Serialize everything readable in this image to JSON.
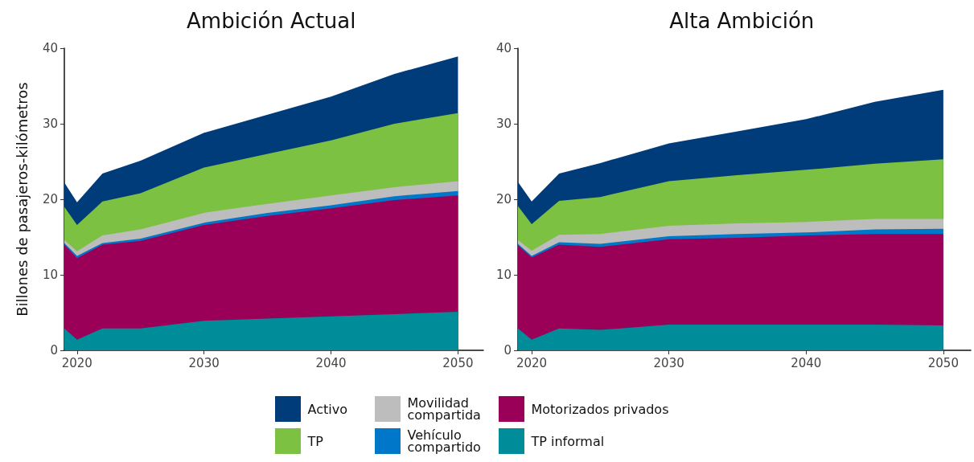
{
  "chart_data": [
    {
      "type": "area",
      "title": "Ambición Actual",
      "ylabel": "Billones de pasajeros-kilómetros",
      "stacked": true,
      "legend": "bottom",
      "grid": false,
      "x": [
        2019,
        2020,
        2022,
        2025,
        2030,
        2035,
        2040,
        2045,
        2050
      ],
      "xlim": [
        2019,
        2052
      ],
      "xticks": [
        2020,
        2030,
        2040,
        2050
      ],
      "ylim": [
        0,
        40
      ],
      "yticks": [
        0,
        10,
        20,
        30,
        40
      ],
      "series": [
        {
          "name": "TP informal",
          "color": "#008c99",
          "values": [
            2.9,
            1.4,
            2.9,
            2.9,
            3.9,
            4.2,
            4.5,
            4.8,
            5.1
          ]
        },
        {
          "name": "Motorizados privados",
          "color": "#9b0058",
          "values": [
            11.1,
            10.8,
            11.1,
            11.6,
            12.7,
            13.6,
            14.3,
            15.1,
            15.4
          ]
        },
        {
          "name": "Vehículo compartido",
          "color": "#0077c8",
          "values": [
            0.2,
            0.3,
            0.2,
            0.3,
            0.3,
            0.4,
            0.4,
            0.5,
            0.6
          ]
        },
        {
          "name": "Movilidad compartida",
          "color": "#bdbdbd",
          "values": [
            0.4,
            0.6,
            1.0,
            1.2,
            1.3,
            1.2,
            1.3,
            1.2,
            1.3
          ]
        },
        {
          "name": "TP",
          "color": "#7dc142",
          "values": [
            4.4,
            3.5,
            4.5,
            4.8,
            6.0,
            6.6,
            7.3,
            8.4,
            9.0
          ]
        },
        {
          "name": "Activo",
          "color": "#003b7a",
          "values": [
            3.2,
            3.0,
            3.7,
            4.3,
            4.6,
            5.2,
            5.8,
            6.6,
            7.5
          ]
        }
      ]
    },
    {
      "type": "area",
      "title": "Alta Ambición",
      "stacked": true,
      "grid": false,
      "x": [
        2019,
        2020,
        2022,
        2025,
        2030,
        2035,
        2040,
        2045,
        2050
      ],
      "xlim": [
        2019,
        2052
      ],
      "xticks": [
        2020,
        2030,
        2040,
        2050
      ],
      "ylim": [
        0,
        40
      ],
      "yticks": [
        0,
        10,
        20,
        30,
        40
      ],
      "series": [
        {
          "color": "#008c99",
          "values": [
            2.9,
            1.4,
            2.9,
            2.7,
            3.4,
            3.4,
            3.4,
            3.4,
            3.3
          ]
        },
        {
          "color": "#9b0058",
          "values": [
            11.0,
            10.9,
            11.1,
            11.0,
            11.3,
            11.5,
            11.8,
            12.0,
            12.1
          ]
        },
        {
          "color": "#0077c8",
          "values": [
            0.2,
            0.2,
            0.3,
            0.4,
            0.4,
            0.5,
            0.4,
            0.6,
            0.7
          ]
        },
        {
          "color": "#bdbdbd",
          "values": [
            0.5,
            0.7,
            1.0,
            1.3,
            1.4,
            1.4,
            1.4,
            1.4,
            1.3
          ]
        },
        {
          "color": "#7dc142",
          "values": [
            4.5,
            3.5,
            4.5,
            4.9,
            5.9,
            6.4,
            6.9,
            7.3,
            7.9
          ]
        },
        {
          "color": "#003b7a",
          "values": [
            3.2,
            3.0,
            3.6,
            4.5,
            5.0,
            5.8,
            6.7,
            8.2,
            9.2
          ]
        }
      ]
    }
  ]
}
